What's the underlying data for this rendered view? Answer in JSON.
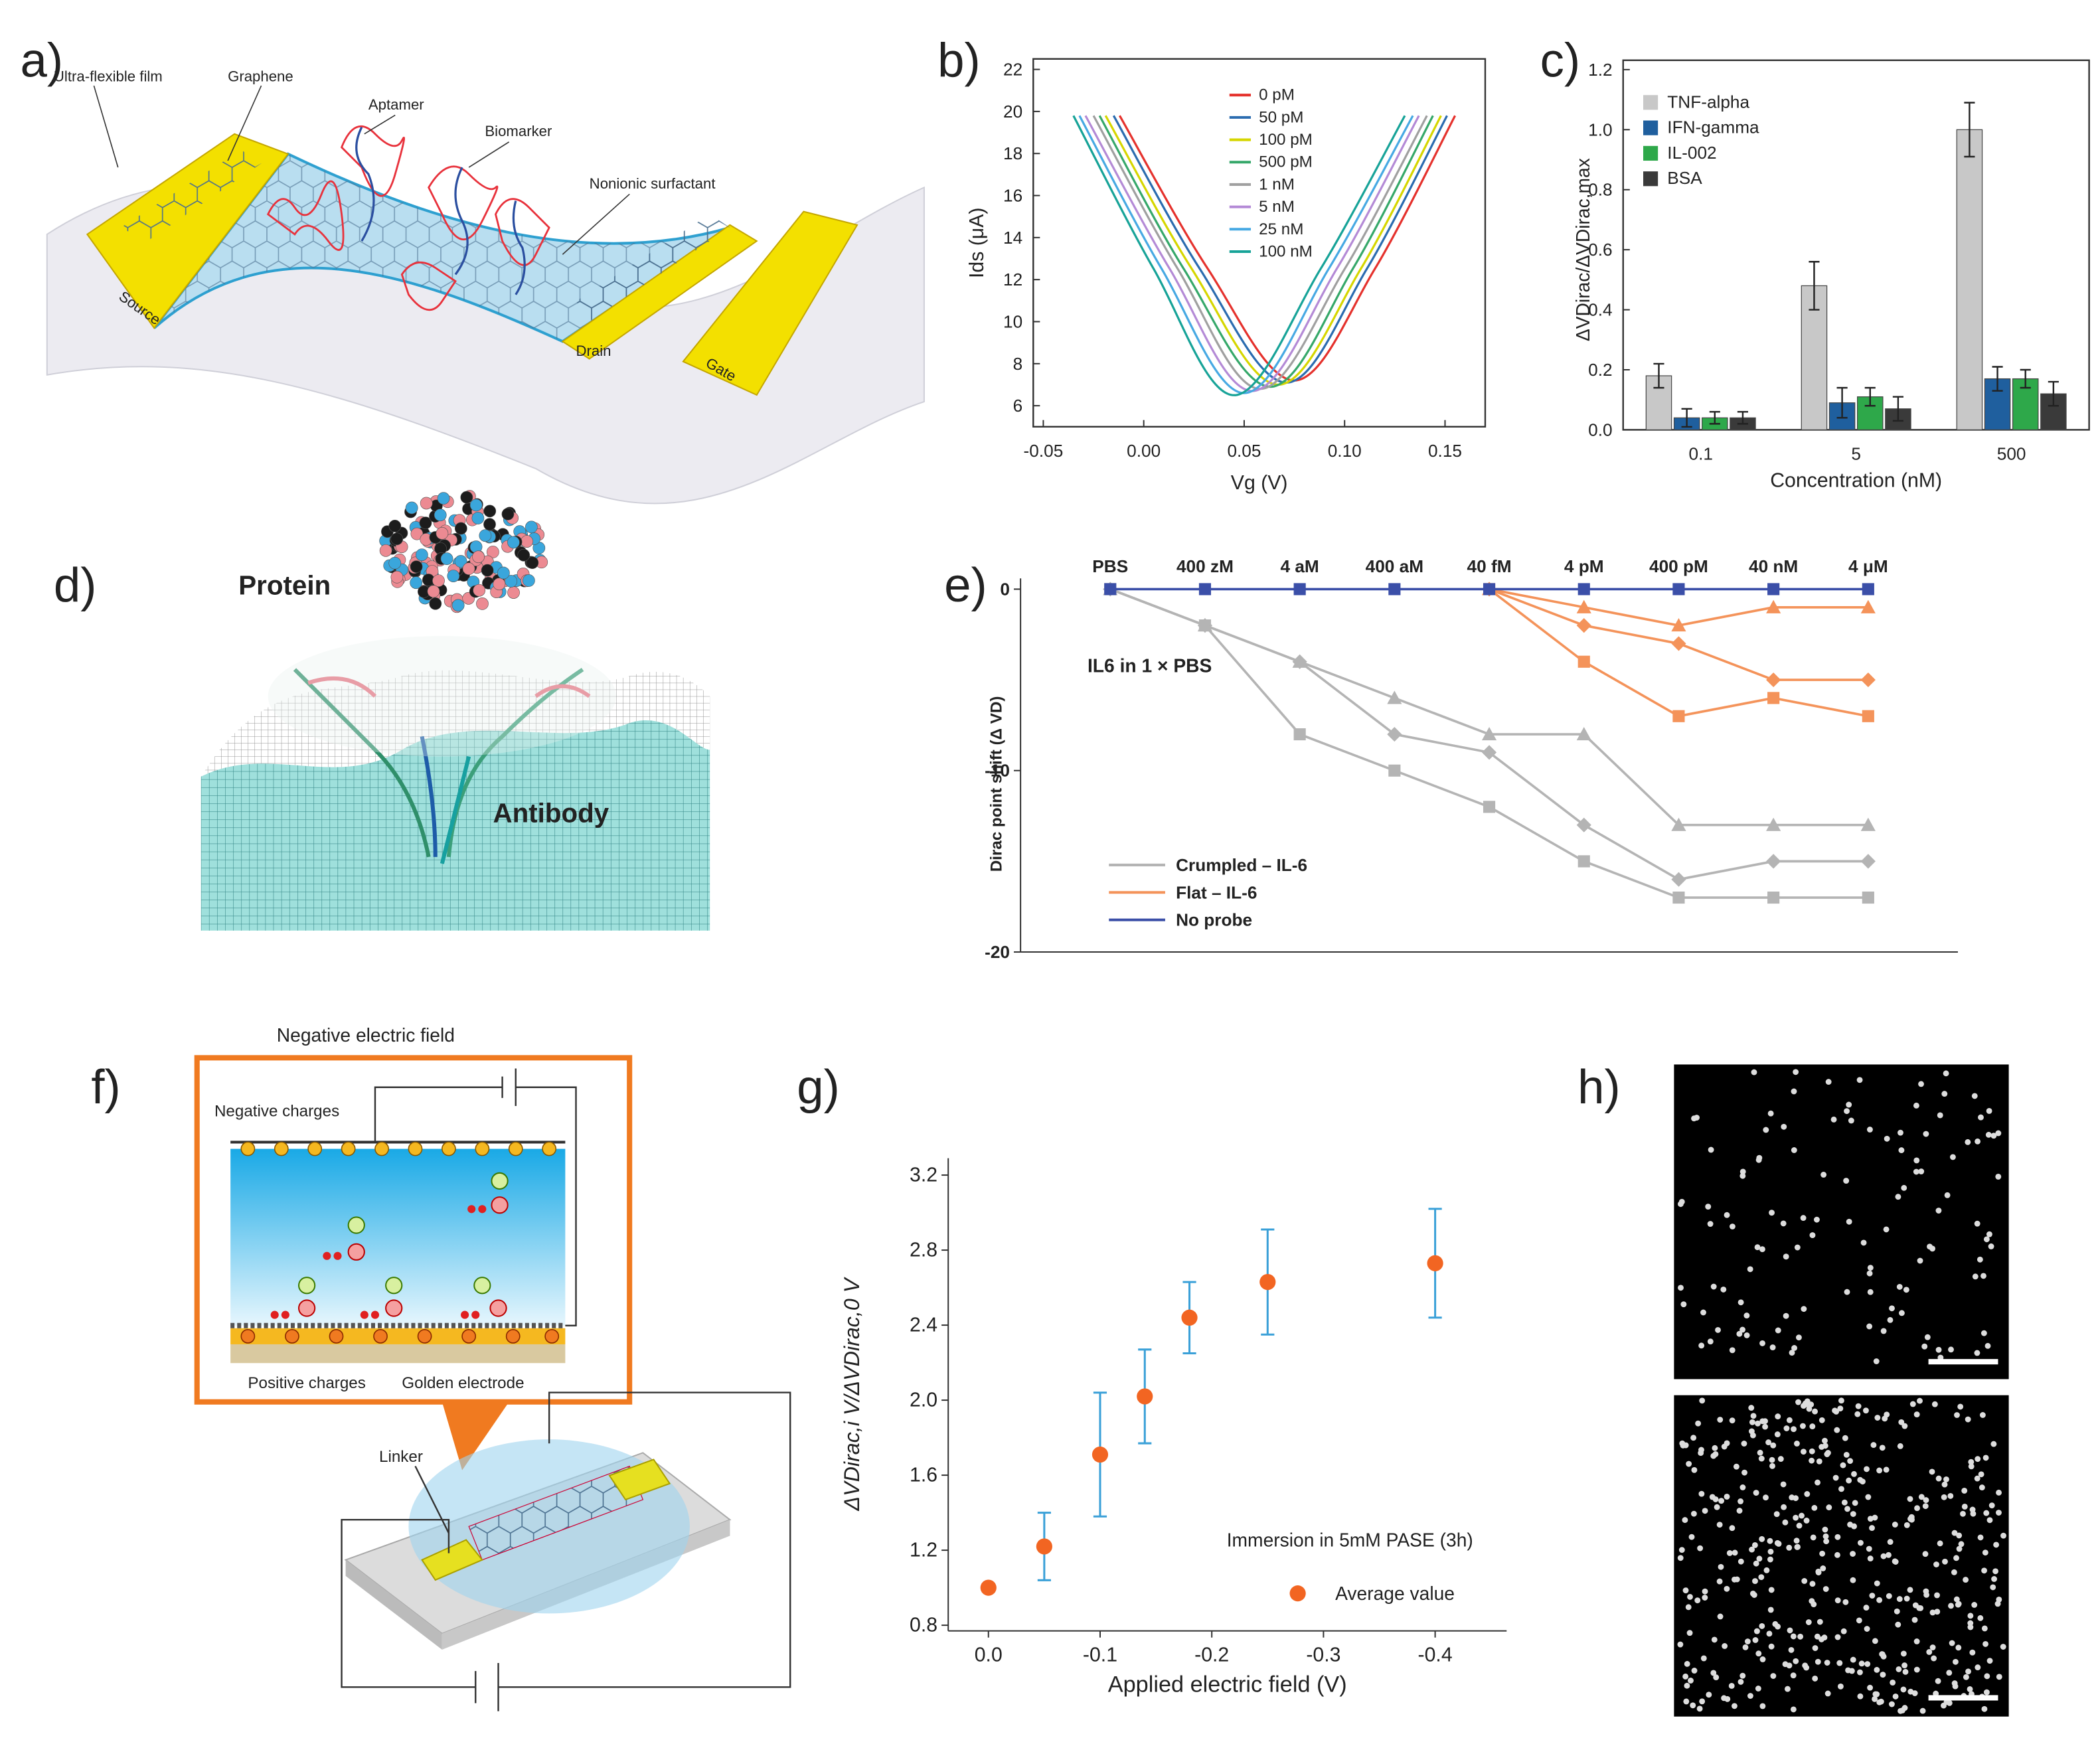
{
  "panel_labels": [
    "a)",
    "b)",
    "c)",
    "d)",
    "e)",
    "f)",
    "g)",
    "h)"
  ],
  "illustrations": {
    "a": {
      "labels": [
        "Ultra-flexible film",
        "Graphene",
        "Aptamer",
        "Biomarker",
        "Nonionic surfactant",
        "Source",
        "Drain",
        "Gate"
      ]
    },
    "d": {
      "labels": [
        "Protein",
        "Antibody"
      ]
    },
    "f": {
      "title": "Negative electric field",
      "labels": [
        "Negative charges",
        "Positive charges",
        "Golden electrode",
        "Linker"
      ]
    }
  },
  "chart_data": [
    {
      "type": "line",
      "xlabel": "Vg (V)",
      "ylabel": "Ids (μA)",
      "xlim": [
        -0.055,
        0.17
      ],
      "ylim": [
        5,
        22.5
      ],
      "xticks": [
        {
          "value": -0.05,
          "label": "-0.05"
        },
        {
          "value": 0,
          "label": "0.00"
        },
        {
          "value": 0.05,
          "label": "0.05"
        },
        {
          "value": 0.1,
          "label": "0.10"
        },
        {
          "value": 0.15,
          "label": "0.15"
        }
      ],
      "yticks": [
        6,
        8,
        10,
        12,
        14,
        16,
        18,
        20,
        22
      ],
      "series": [
        {
          "name": "0 pM",
          "color": "#e5322d",
          "x": [
            -0.012,
            0.032,
            0.075,
            0.115,
            0.155
          ],
          "values": [
            19.8,
            12.5,
            7.2,
            12.5,
            19.8
          ]
        },
        {
          "name": "50 pM",
          "color": "#2b6cb0",
          "x": [
            -0.015,
            0.028,
            0.071,
            0.111,
            0.151
          ],
          "values": [
            19.8,
            12.5,
            7.1,
            12.5,
            19.8
          ]
        },
        {
          "name": "100 pM",
          "color": "#d6d600",
          "x": [
            -0.019,
            0.024,
            0.067,
            0.108,
            0.148
          ],
          "values": [
            19.8,
            12.5,
            7.0,
            12.5,
            19.8
          ]
        },
        {
          "name": "500 pM",
          "color": "#36a86a",
          "x": [
            -0.022,
            0.02,
            0.063,
            0.104,
            0.144
          ],
          "values": [
            19.8,
            12.5,
            6.9,
            12.5,
            19.8
          ]
        },
        {
          "name": "1 nM",
          "color": "#a0a0a0",
          "x": [
            -0.025,
            0.017,
            0.058,
            0.1,
            0.141
          ],
          "values": [
            19.8,
            12.5,
            6.8,
            12.5,
            19.8
          ]
        },
        {
          "name": "5 nM",
          "color": "#b48ad6",
          "x": [
            -0.029,
            0.013,
            0.054,
            0.096,
            0.137
          ],
          "values": [
            19.8,
            12.5,
            6.7,
            12.5,
            19.8
          ]
        },
        {
          "name": "25 nM",
          "color": "#47a9e3",
          "x": [
            -0.032,
            0.009,
            0.05,
            0.092,
            0.134
          ],
          "values": [
            19.8,
            12.5,
            6.6,
            12.5,
            19.8
          ]
        },
        {
          "name": "100 nM",
          "color": "#17a398",
          "x": [
            -0.035,
            0.005,
            0.045,
            0.088,
            0.13
          ],
          "values": [
            19.8,
            12.5,
            6.5,
            12.5,
            19.8
          ]
        }
      ]
    },
    {
      "type": "bar",
      "xlabel": "Concentration (nM)",
      "ylabel": "ΔVDirac/ΔVDirac,max",
      "categories": [
        "0.1",
        "5",
        "500"
      ],
      "ylim": [
        0,
        1.2
      ],
      "yticks": [
        {
          "value": 0,
          "label": "0.0"
        },
        0.2,
        0.4,
        0.6,
        0.8,
        {
          "value": 1,
          "label": "1.0"
        },
        1.2
      ],
      "series": [
        {
          "name": "TNF-alpha",
          "color": "#c8c8c8",
          "values": [
            0.18,
            0.48,
            1.0
          ],
          "errors": [
            0.04,
            0.08,
            0.09
          ]
        },
        {
          "name": "IFN-gamma",
          "color": "#1f5f9e",
          "values": [
            0.04,
            0.09,
            0.17
          ],
          "errors": [
            0.03,
            0.05,
            0.04
          ]
        },
        {
          "name": "IL-002",
          "color": "#2ea84a",
          "values": [
            0.04,
            0.11,
            0.17
          ],
          "errors": [
            0.02,
            0.03,
            0.03
          ]
        },
        {
          "name": "BSA",
          "color": "#3a3a3a",
          "values": [
            0.04,
            0.07,
            0.12
          ],
          "errors": [
            0.02,
            0.04,
            0.04
          ]
        }
      ]
    },
    {
      "type": "line",
      "ylabel": "Dirac point shift (Δ VD)",
      "annotation": "IL6 in 1 × PBS",
      "categories": [
        "PBS",
        "400 zM",
        "4 aM",
        "400 aM",
        "40 fM",
        "4 pM",
        "400 pM",
        "40 nM",
        "4 μM"
      ],
      "ylim": [
        -20,
        0
      ],
      "yticks": [
        0,
        -10,
        -20
      ],
      "series": [
        {
          "name": "Crumpled – IL-6",
          "color": "#b4b4b4",
          "lines": [
            {
              "marker": "square",
              "values": [
                0,
                -2,
                -8,
                -10,
                -12,
                -15,
                -17,
                -17,
                -17
              ]
            },
            {
              "marker": "diamond",
              "values": [
                0,
                -2,
                -4,
                -8,
                -9,
                -13,
                -16,
                -15,
                -15
              ]
            },
            {
              "marker": "triangle",
              "values": [
                0,
                -2,
                -4,
                -6,
                -8,
                -8,
                -13,
                -13,
                -13
              ]
            }
          ]
        },
        {
          "name": "Flat – IL-6",
          "color": "#f4935a",
          "lines": [
            {
              "marker": "triangle",
              "values": [
                null,
                null,
                null,
                null,
                0,
                -1,
                -2,
                -1,
                -1
              ]
            },
            {
              "marker": "diamond",
              "values": [
                null,
                null,
                null,
                null,
                0,
                -2,
                -3,
                -5,
                -5
              ]
            },
            {
              "marker": "square",
              "values": [
                null,
                null,
                null,
                null,
                0,
                -4,
                -7,
                -6,
                -7
              ]
            }
          ]
        },
        {
          "name": "No probe",
          "color": "#3b4fa8",
          "lines": [
            {
              "marker": "square",
              "values": [
                0,
                0,
                0,
                0,
                0,
                0,
                0,
                0,
                0
              ]
            }
          ]
        }
      ]
    },
    {
      "type": "scatter",
      "xlabel": "Applied electric field (V)",
      "ylabel": "ΔVDirac,i V/ΔVDirac,0 V",
      "annotation": "Immersion in 5mM PASE (3h)",
      "xlim": [
        0.036,
        -0.464
      ],
      "ylim": [
        0.77,
        3.29
      ],
      "xticks": [
        {
          "value": 0,
          "label": "0.0"
        },
        -0.1,
        -0.2,
        -0.3,
        -0.4
      ],
      "yticks": [
        0.8,
        1.2,
        1.6,
        {
          "value": 2,
          "label": "2.0"
        },
        2.4,
        2.8,
        3.2
      ],
      "series": [
        {
          "name": "Average value",
          "color": "#f26522",
          "error_color": "#3aa0d8",
          "x": [
            0,
            -0.05,
            -0.1,
            -0.14,
            -0.18,
            -0.25,
            -0.4
          ],
          "values": [
            1.0,
            1.22,
            1.71,
            2.02,
            2.44,
            2.63,
            2.73
          ],
          "errors": [
            null,
            0.18,
            0.33,
            0.25,
            0.19,
            0.28,
            0.29
          ]
        }
      ]
    }
  ]
}
